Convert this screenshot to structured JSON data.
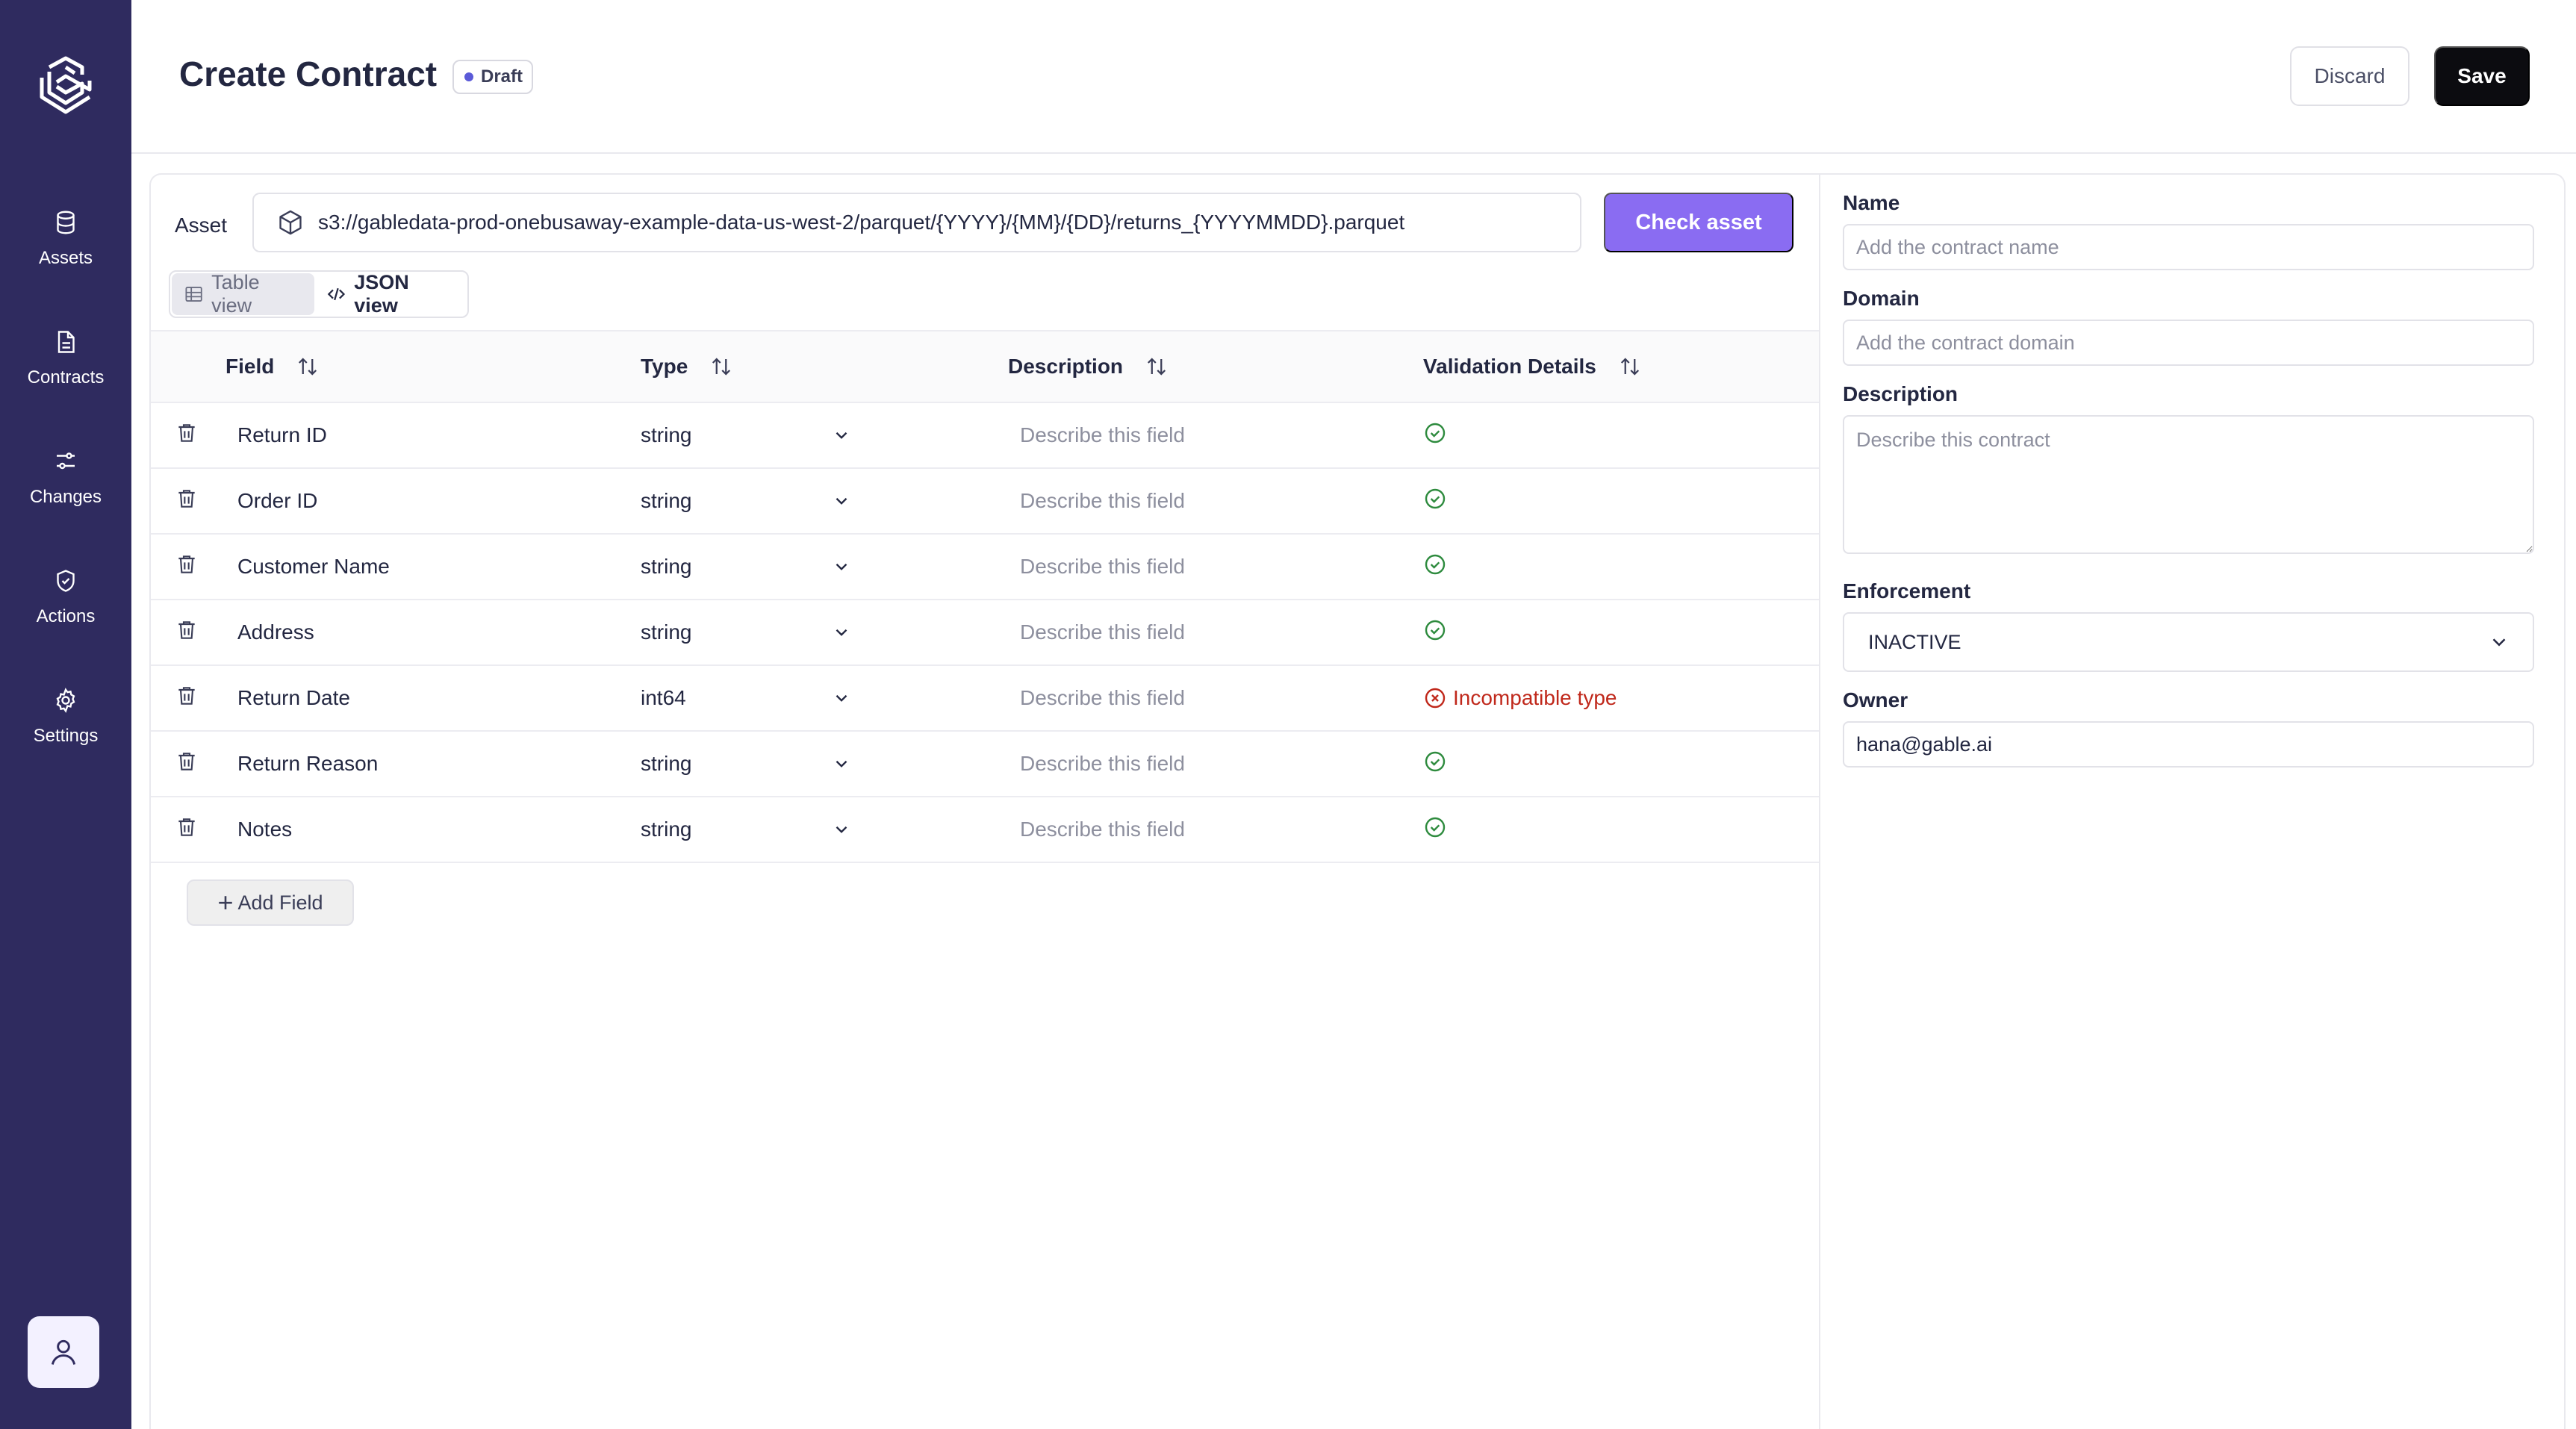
{
  "sidebar": {
    "items": [
      {
        "label": "Assets",
        "icon": "database-icon"
      },
      {
        "label": "Contracts",
        "icon": "document-icon"
      },
      {
        "label": "Changes",
        "icon": "sliders-icon"
      },
      {
        "label": "Actions",
        "icon": "shield-check-icon"
      },
      {
        "label": "Settings",
        "icon": "gear-icon"
      }
    ]
  },
  "header": {
    "title": "Create Contract",
    "badge": "Draft",
    "discard_label": "Discard",
    "save_label": "Save"
  },
  "asset": {
    "label": "Asset",
    "value": "s3://gabledata-prod-onebusaway-example-data-us-west-2/parquet/{YYYY}/{MM}/{DD}/returns_{YYYYMMDD}.parquet",
    "check_label": "Check asset"
  },
  "views": {
    "table_label": "Table view",
    "json_label": "JSON view"
  },
  "table": {
    "columns": [
      "Field",
      "Type",
      "Description",
      "Validation Details"
    ],
    "description_placeholder": "Describe this field",
    "rows": [
      {
        "field": "Return ID",
        "type": "string",
        "status": "ok",
        "message": ""
      },
      {
        "field": "Order ID",
        "type": "string",
        "status": "ok",
        "message": ""
      },
      {
        "field": "Customer Name",
        "type": "string",
        "status": "ok",
        "message": ""
      },
      {
        "field": "Address",
        "type": "string",
        "status": "ok",
        "message": ""
      },
      {
        "field": "Return Date",
        "type": "int64",
        "status": "error",
        "message": "Incompatible type"
      },
      {
        "field": "Return Reason",
        "type": "string",
        "status": "ok",
        "message": ""
      },
      {
        "field": "Notes",
        "type": "string",
        "status": "ok",
        "message": ""
      }
    ],
    "add_label": "Add Field"
  },
  "form": {
    "name_label": "Name",
    "name_placeholder": "Add the contract name",
    "domain_label": "Domain",
    "domain_placeholder": "Add the contract domain",
    "description_label": "Description",
    "description_placeholder": "Describe this contract",
    "enforcement_label": "Enforcement",
    "enforcement_value": "INACTIVE",
    "owner_label": "Owner",
    "owner_value": "hana@gable.ai"
  },
  "colors": {
    "sidebar": "#2f2b5f",
    "accent": "#8a6cf2",
    "success": "#2e8b3e",
    "error": "#c0281b"
  }
}
